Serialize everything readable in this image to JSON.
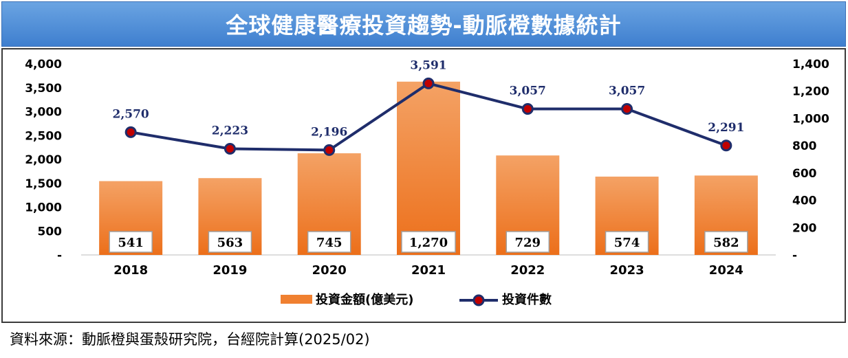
{
  "title": "全球健康醫療投資趨勢-動脈橙數據統計",
  "source_note": "資料來源：動脈橙與蛋殼研究院，台經院計算(2025/02)",
  "colors": {
    "bar": "#f08030",
    "bar_dark": "#ec6f1a",
    "line": "#1f2d6b",
    "marker": "#c00000",
    "title_bg": "#4a8ad6"
  },
  "chart_data": {
    "type": "bar+line",
    "categories": [
      "2018",
      "2019",
      "2020",
      "2021",
      "2022",
      "2023",
      "2024"
    ],
    "series": [
      {
        "name": "投資金額(億美元)",
        "type": "bar",
        "axis": "left",
        "values": [
          541,
          563,
          745,
          1270,
          729,
          574,
          582
        ],
        "labels": [
          "541",
          "563",
          "745",
          "1,270",
          "729",
          "574",
          "582"
        ]
      },
      {
        "name": "投資件數",
        "type": "line",
        "axis": "right",
        "values": [
          2570,
          2223,
          2196,
          3591,
          3057,
          3057,
          2291
        ],
        "labels": [
          "2,570",
          "2,223",
          "2,196",
          "3,591",
          "3,057",
          "3,057",
          "2,291"
        ]
      }
    ],
    "left_axis": {
      "ylim": [
        0,
        4000
      ],
      "ticks": [
        "-",
        "500",
        "1,000",
        "1,500",
        "2,000",
        "2,500",
        "3,000",
        "3,500",
        "4,000"
      ]
    },
    "right_axis": {
      "ylim": [
        0,
        1400
      ],
      "ticks": [
        "-",
        "200",
        "400",
        "600",
        "800",
        "1,000",
        "1,200",
        "1,400"
      ]
    },
    "legend": "bottom-center"
  }
}
